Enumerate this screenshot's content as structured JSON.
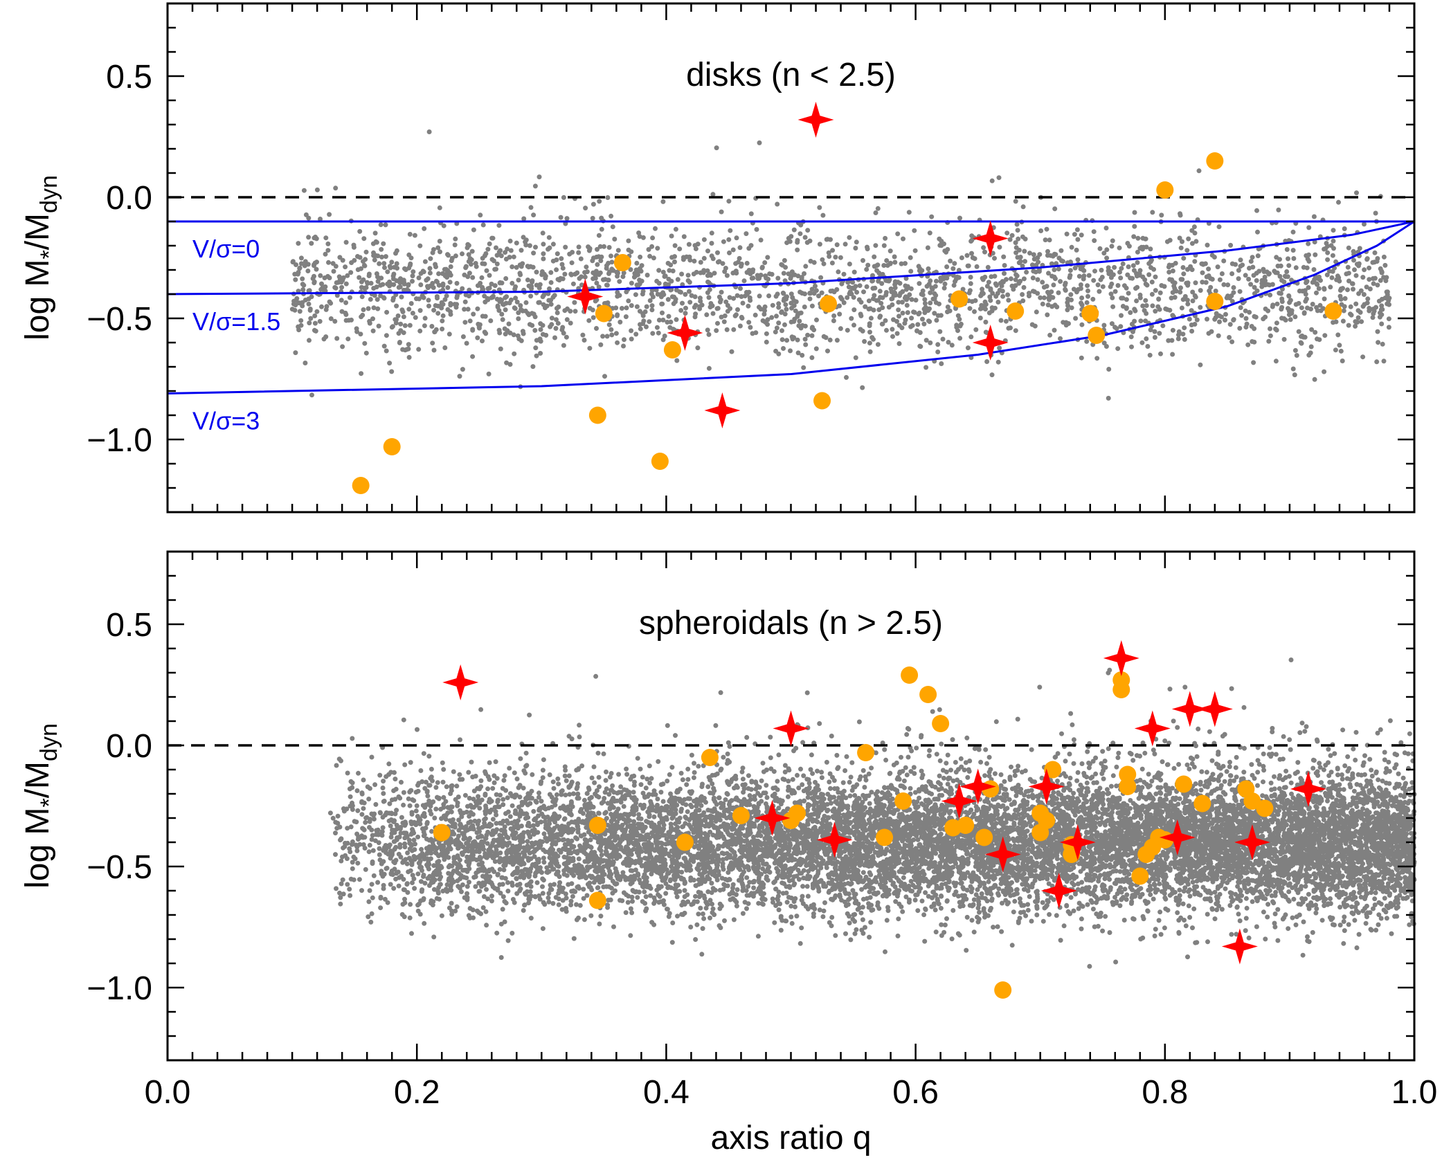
{
  "chart_data": [
    {
      "type": "scatter",
      "panel": "top",
      "annotation": "disks (n < 2.5)",
      "ylabel_main": "log M",
      "ylabel_sub1": "*",
      "ylabel_mid": "/M",
      "ylabel_sub2": "dyn",
      "xlim": [
        0.0,
        1.0
      ],
      "ylim": [
        -1.3,
        0.8
      ],
      "y_ticks": [
        {
          "v": 0.5,
          "label": "0.5"
        },
        {
          "v": 0.0,
          "label": "0.0"
        },
        {
          "v": -0.5,
          "label": "−0.5"
        },
        {
          "v": -1.0,
          "label": "−1.0"
        }
      ],
      "reference_line_y": 0.0,
      "background_cloud": {
        "color": "#808080",
        "x_range": [
          0.1,
          0.98
        ],
        "y_mean": -0.38,
        "y_sigma": 0.13,
        "approx_points": 2600
      },
      "model_curves": [
        {
          "label": "V/σ=0",
          "points": [
            [
              0.0,
              -0.1
            ],
            [
              1.0,
              -0.1
            ]
          ]
        },
        {
          "label": "V/σ=1.5",
          "points": [
            [
              0.0,
              -0.4
            ],
            [
              0.3,
              -0.39
            ],
            [
              0.5,
              -0.355
            ],
            [
              0.7,
              -0.29
            ],
            [
              0.85,
              -0.22
            ],
            [
              0.95,
              -0.155
            ],
            [
              1.0,
              -0.1
            ]
          ]
        },
        {
          "label": "V/σ=3",
          "points": [
            [
              0.0,
              -0.81
            ],
            [
              0.3,
              -0.78
            ],
            [
              0.5,
              -0.73
            ],
            [
              0.65,
              -0.65
            ],
            [
              0.75,
              -0.57
            ],
            [
              0.85,
              -0.45
            ],
            [
              0.92,
              -0.32
            ],
            [
              0.97,
              -0.2
            ],
            [
              1.0,
              -0.1
            ]
          ]
        }
      ],
      "orange_points": [
        [
          0.155,
          -1.19
        ],
        [
          0.18,
          -1.03
        ],
        [
          0.35,
          -0.48
        ],
        [
          0.365,
          -0.27
        ],
        [
          0.345,
          -0.9
        ],
        [
          0.395,
          -1.09
        ],
        [
          0.405,
          -0.63
        ],
        [
          0.525,
          -0.84
        ],
        [
          0.53,
          -0.44
        ],
        [
          0.635,
          -0.42
        ],
        [
          0.68,
          -0.47
        ],
        [
          0.74,
          -0.48
        ],
        [
          0.745,
          -0.57
        ],
        [
          0.8,
          0.03
        ],
        [
          0.84,
          0.15
        ],
        [
          0.84,
          -0.43
        ],
        [
          0.935,
          -0.47
        ]
      ],
      "red_star_points": [
        [
          0.52,
          0.32
        ],
        [
          0.335,
          -0.41
        ],
        [
          0.415,
          -0.56
        ],
        [
          0.445,
          -0.88
        ],
        [
          0.66,
          -0.17
        ],
        [
          0.66,
          -0.6
        ]
      ]
    },
    {
      "type": "scatter",
      "panel": "bottom",
      "annotation": "spheroidals (n > 2.5)",
      "ylabel_main": "log M",
      "ylabel_sub1": "*",
      "ylabel_mid": "/M",
      "ylabel_sub2": "dyn",
      "xlabel": "axis ratio q",
      "xlim": [
        0.0,
        1.0
      ],
      "ylim": [
        -1.3,
        0.8
      ],
      "x_ticks": [
        {
          "v": 0.0,
          "label": "0.0"
        },
        {
          "v": 0.2,
          "label": "0.2"
        },
        {
          "v": 0.4,
          "label": "0.4"
        },
        {
          "v": 0.6,
          "label": "0.6"
        },
        {
          "v": 0.8,
          "label": "0.8"
        },
        {
          "v": 1.0,
          "label": "1.0"
        }
      ],
      "y_ticks": [
        {
          "v": 0.5,
          "label": "0.5"
        },
        {
          "v": 0.0,
          "label": "0.0"
        },
        {
          "v": -0.5,
          "label": "−0.5"
        },
        {
          "v": -1.0,
          "label": "−1.0"
        }
      ],
      "reference_line_y": 0.0,
      "background_cloud": {
        "color": "#808080",
        "x_range": [
          0.13,
          1.0
        ],
        "y_mean": -0.4,
        "y_sigma": 0.14,
        "approx_points": 12000
      },
      "orange_points": [
        [
          0.22,
          -0.36
        ],
        [
          0.345,
          -0.33
        ],
        [
          0.345,
          -0.64
        ],
        [
          0.415,
          -0.4
        ],
        [
          0.435,
          -0.05
        ],
        [
          0.46,
          -0.29
        ],
        [
          0.5,
          -0.31
        ],
        [
          0.505,
          -0.28
        ],
        [
          0.56,
          -0.03
        ],
        [
          0.575,
          -0.38
        ],
        [
          0.59,
          -0.23
        ],
        [
          0.595,
          0.29
        ],
        [
          0.61,
          0.21
        ],
        [
          0.62,
          0.09
        ],
        [
          0.63,
          -0.34
        ],
        [
          0.64,
          -0.33
        ],
        [
          0.66,
          -0.18
        ],
        [
          0.655,
          -0.38
        ],
        [
          0.67,
          -1.01
        ],
        [
          0.7,
          -0.28
        ],
        [
          0.7,
          -0.36
        ],
        [
          0.705,
          -0.31
        ],
        [
          0.71,
          -0.1
        ],
        [
          0.725,
          -0.41
        ],
        [
          0.725,
          -0.45
        ],
        [
          0.765,
          0.23
        ],
        [
          0.765,
          0.27
        ],
        [
          0.77,
          -0.12
        ],
        [
          0.77,
          -0.17
        ],
        [
          0.78,
          -0.54
        ],
        [
          0.785,
          -0.45
        ],
        [
          0.79,
          -0.42
        ],
        [
          0.795,
          -0.38
        ],
        [
          0.8,
          -0.39
        ],
        [
          0.815,
          -0.16
        ],
        [
          0.83,
          -0.24
        ],
        [
          0.865,
          -0.18
        ],
        [
          0.87,
          -0.23
        ],
        [
          0.88,
          -0.26
        ]
      ],
      "red_star_points": [
        [
          0.235,
          0.26
        ],
        [
          0.485,
          -0.3
        ],
        [
          0.5,
          0.07
        ],
        [
          0.535,
          -0.39
        ],
        [
          0.635,
          -0.23
        ],
        [
          0.65,
          -0.17
        ],
        [
          0.67,
          -0.45
        ],
        [
          0.705,
          -0.17
        ],
        [
          0.715,
          -0.6
        ],
        [
          0.73,
          -0.4
        ],
        [
          0.765,
          0.36
        ],
        [
          0.79,
          0.07
        ],
        [
          0.81,
          -0.38
        ],
        [
          0.82,
          0.15
        ],
        [
          0.84,
          0.15
        ],
        [
          0.86,
          -0.83
        ],
        [
          0.87,
          -0.4
        ],
        [
          0.915,
          -0.18
        ]
      ]
    }
  ]
}
